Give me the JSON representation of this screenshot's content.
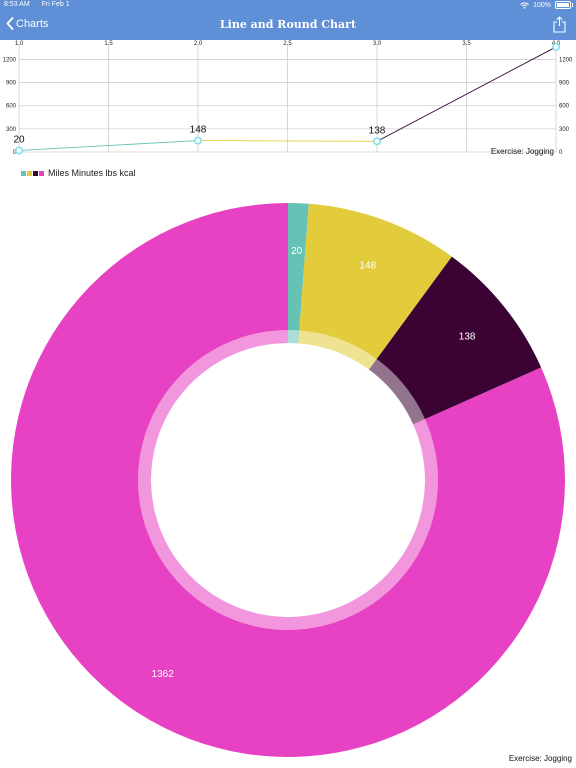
{
  "status_bar": {
    "time": "8:53 AM",
    "date": "Fri Feb 1",
    "battery": "100%",
    "battery_level": 1.0
  },
  "nav": {
    "back_label": "Charts",
    "title": "Line and Round Chart"
  },
  "colors": {
    "nav": "#5f8fd6",
    "miles": "#66c2b5",
    "minutes": "#e2cc3b",
    "lbs": "#3b0333",
    "kcal": "#e842c4"
  },
  "chart_data": [
    {
      "type": "line",
      "x": [
        1.0,
        2.0,
        3.0,
        4.0
      ],
      "values": [
        20,
        148,
        138,
        1362
      ],
      "data_labels": [
        "20",
        "148",
        "138",
        "1362"
      ],
      "segment_colors": [
        "#66c2b5",
        "#e2cc3b",
        "#3b0333"
      ],
      "x_ticks": [
        "1.0",
        "1.5",
        "2.0",
        "2.5",
        "3.0",
        "3.5",
        "4.0"
      ],
      "y_ticks": [
        "0",
        "300",
        "600",
        "900",
        "1200"
      ],
      "xlim": [
        1.0,
        4.0
      ],
      "ylim": [
        0,
        1400
      ],
      "grid": true,
      "description": "Exercise: Jogging"
    },
    {
      "type": "pie",
      "categories": [
        "Miles",
        "Minutes",
        "lbs",
        "kcal"
      ],
      "values": [
        20,
        148,
        138,
        1362
      ],
      "slice_labels": [
        "20",
        "148",
        "138",
        "1362"
      ],
      "colors": [
        "#66c2b5",
        "#e2cc3b",
        "#3b0333",
        "#e842c4"
      ],
      "hole": true,
      "legend_text": "Miles Minutes lbs kcal",
      "legend_placement": "top-left",
      "description": "Exercise: Jogging"
    }
  ]
}
